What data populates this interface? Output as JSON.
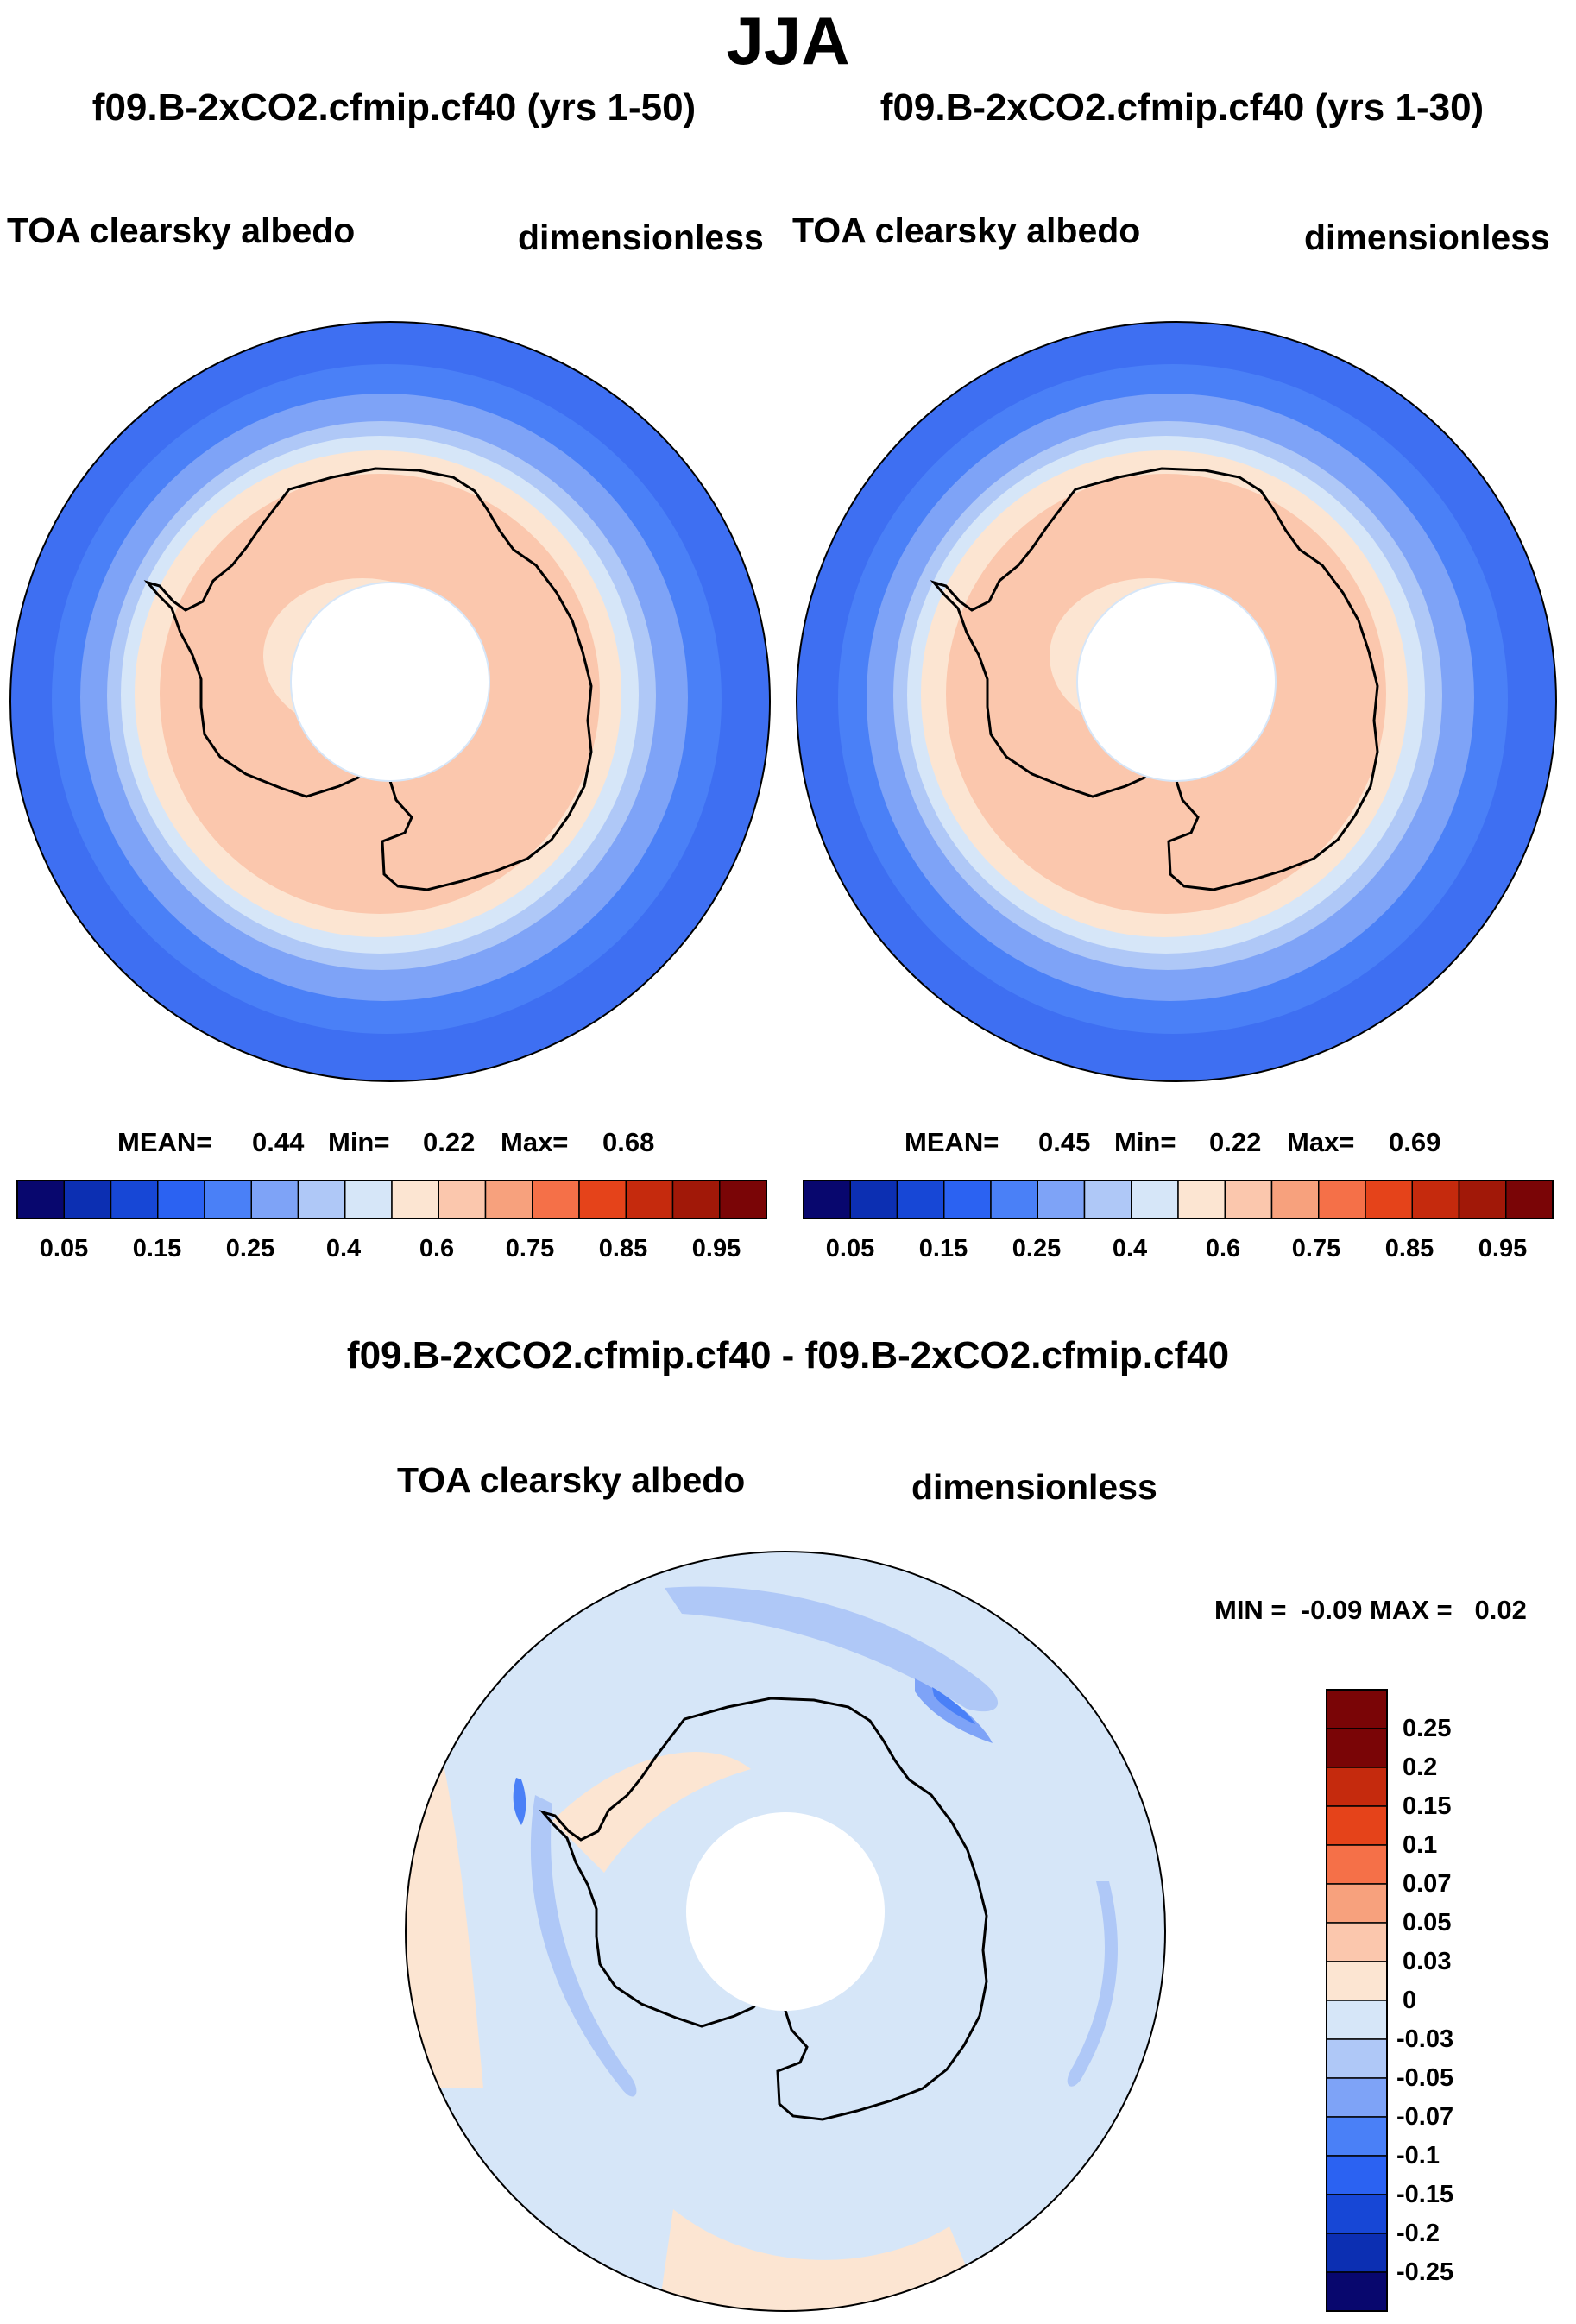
{
  "season_title": "JJA",
  "panels": [
    {
      "run_title": "f09.B-2xCO2.cfmip.cf40 (yrs 1-50)",
      "variable": "TOA clearsky albedo",
      "units": "dimensionless",
      "stats": {
        "mean_label": "MEAN=",
        "mean": "0.44",
        "min_label": "Min=",
        "min": "0.22",
        "max_label": "Max=",
        "max": "0.68"
      }
    },
    {
      "run_title": "f09.B-2xCO2.cfmip.cf40 (yrs 1-30)",
      "variable": "TOA clearsky albedo",
      "units": "dimensionless",
      "stats": {
        "mean_label": "MEAN=",
        "mean": "0.45",
        "min_label": "Min=",
        "min": "0.22",
        "max_label": "Max=",
        "max": "0.69"
      }
    }
  ],
  "difference_panel": {
    "title": "f09.B-2xCO2.cfmip.cf40 - f09.B-2xCO2.cfmip.cf40",
    "variable": "TOA clearsky albedo",
    "units": "dimensionless",
    "stats_text": "MIN =  -0.09 MAX =   0.02"
  },
  "colorbar_main": {
    "colors": [
      "#08076e",
      "#0c2fb2",
      "#1747d6",
      "#2b62f2",
      "#4a80f7",
      "#7ea3f7",
      "#afc8f7",
      "#d6e6f8",
      "#fce5d2",
      "#fbc7ad",
      "#f7a17d",
      "#f57048",
      "#e5431a",
      "#c52a0d",
      "#a11808",
      "#7a0506"
    ],
    "tick_labels": [
      "0.05",
      "0.15",
      "0.25",
      "0.4",
      "0.6",
      "0.75",
      "0.85",
      "0.95"
    ]
  },
  "colorbar_diff": {
    "colors_top_to_bottom": [
      "#7a0506",
      "#c52a0d",
      "#e5431a",
      "#f57048",
      "#f7a17d",
      "#fbc7ad",
      "#fce5d2",
      "#d6e6f8",
      "#afc8f7",
      "#7ea3f7",
      "#4a80f7",
      "#2b62f2",
      "#1747d6",
      "#0c2fb2",
      "#08076e"
    ],
    "tick_labels_top_to_bottom": [
      "0.25",
      "0.2",
      "0.15",
      "0.1",
      "0.07",
      "0.05",
      "0.03",
      "0",
      "-0.03",
      "-0.05",
      "-0.07",
      "-0.1",
      "-0.15",
      "-0.2",
      "-0.25"
    ]
  }
}
